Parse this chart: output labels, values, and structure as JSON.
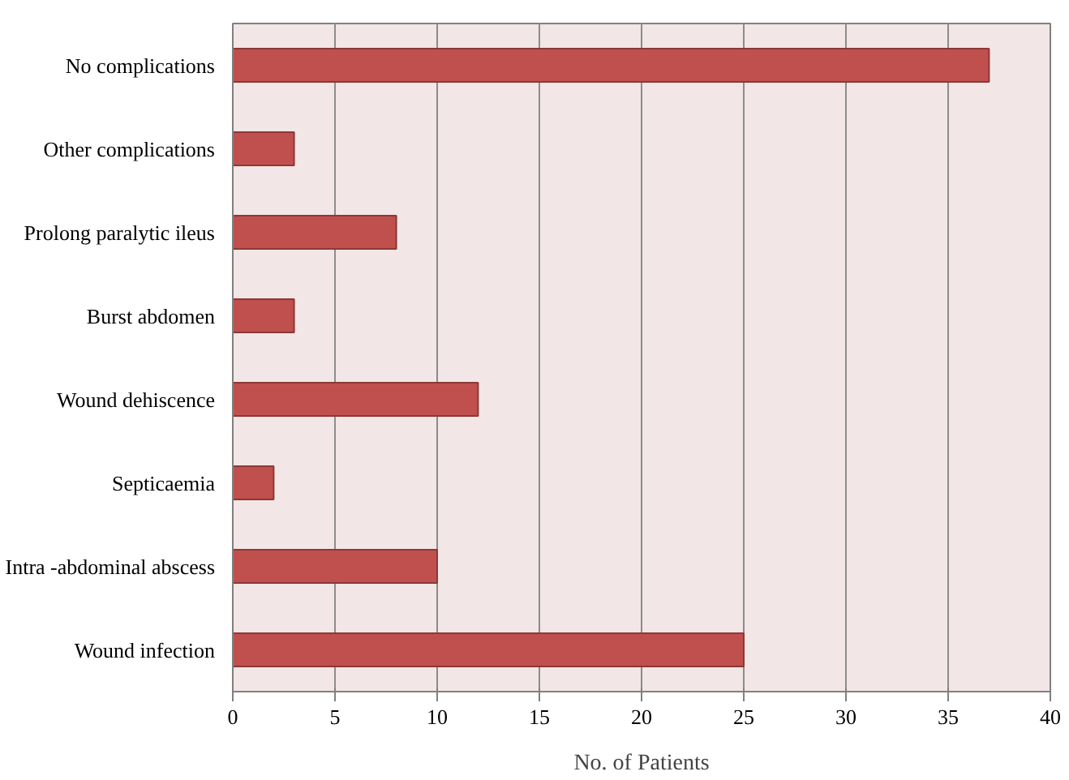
{
  "chart_data": {
    "type": "bar",
    "orientation": "horizontal",
    "xlabel": "No. of Patients",
    "categories": [
      "No complications",
      "Other complications",
      "Prolong paralytic ileus",
      "Burst abdomen",
      "Wound dehiscence",
      "Septicaemia",
      "Intra -abdominal abscess",
      "Wound infection"
    ],
    "values": [
      37,
      3,
      8,
      3,
      12,
      2,
      10,
      25
    ],
    "color": "#c0504d",
    "xlim": [
      0,
      40
    ],
    "xticks": [
      0,
      5,
      10,
      15,
      20,
      25,
      30,
      35,
      40
    ],
    "grid": "x"
  }
}
